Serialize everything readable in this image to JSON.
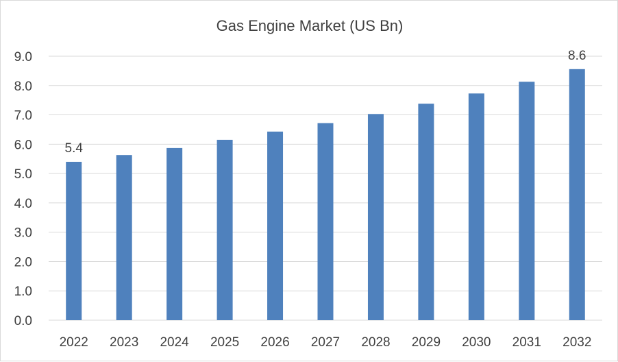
{
  "chart_data": {
    "type": "bar",
    "title": "Gas Engine  Market (US Bn)",
    "xlabel": "",
    "ylabel": "",
    "categories": [
      "2022",
      "2023",
      "2024",
      "2025",
      "2026",
      "2027",
      "2028",
      "2029",
      "2030",
      "2031",
      "2032"
    ],
    "series": [
      {
        "values": [
          5.4,
          5.63,
          5.87,
          6.15,
          6.43,
          6.72,
          7.03,
          7.38,
          7.73,
          8.13,
          8.56
        ]
      }
    ],
    "data_labels": [
      {
        "category": "2022",
        "text": "5.4"
      },
      {
        "category": "2032",
        "text": "8.6"
      }
    ],
    "ylim": [
      0,
      9.0
    ],
    "yticks": [
      "0.0",
      "1.0",
      "2.0",
      "3.0",
      "4.0",
      "5.0",
      "6.0",
      "7.0",
      "8.0",
      "9.0"
    ],
    "grid": true,
    "legend": "none",
    "bar_color": "#4f81bd",
    "gridline_color": "#d9d9d9"
  }
}
